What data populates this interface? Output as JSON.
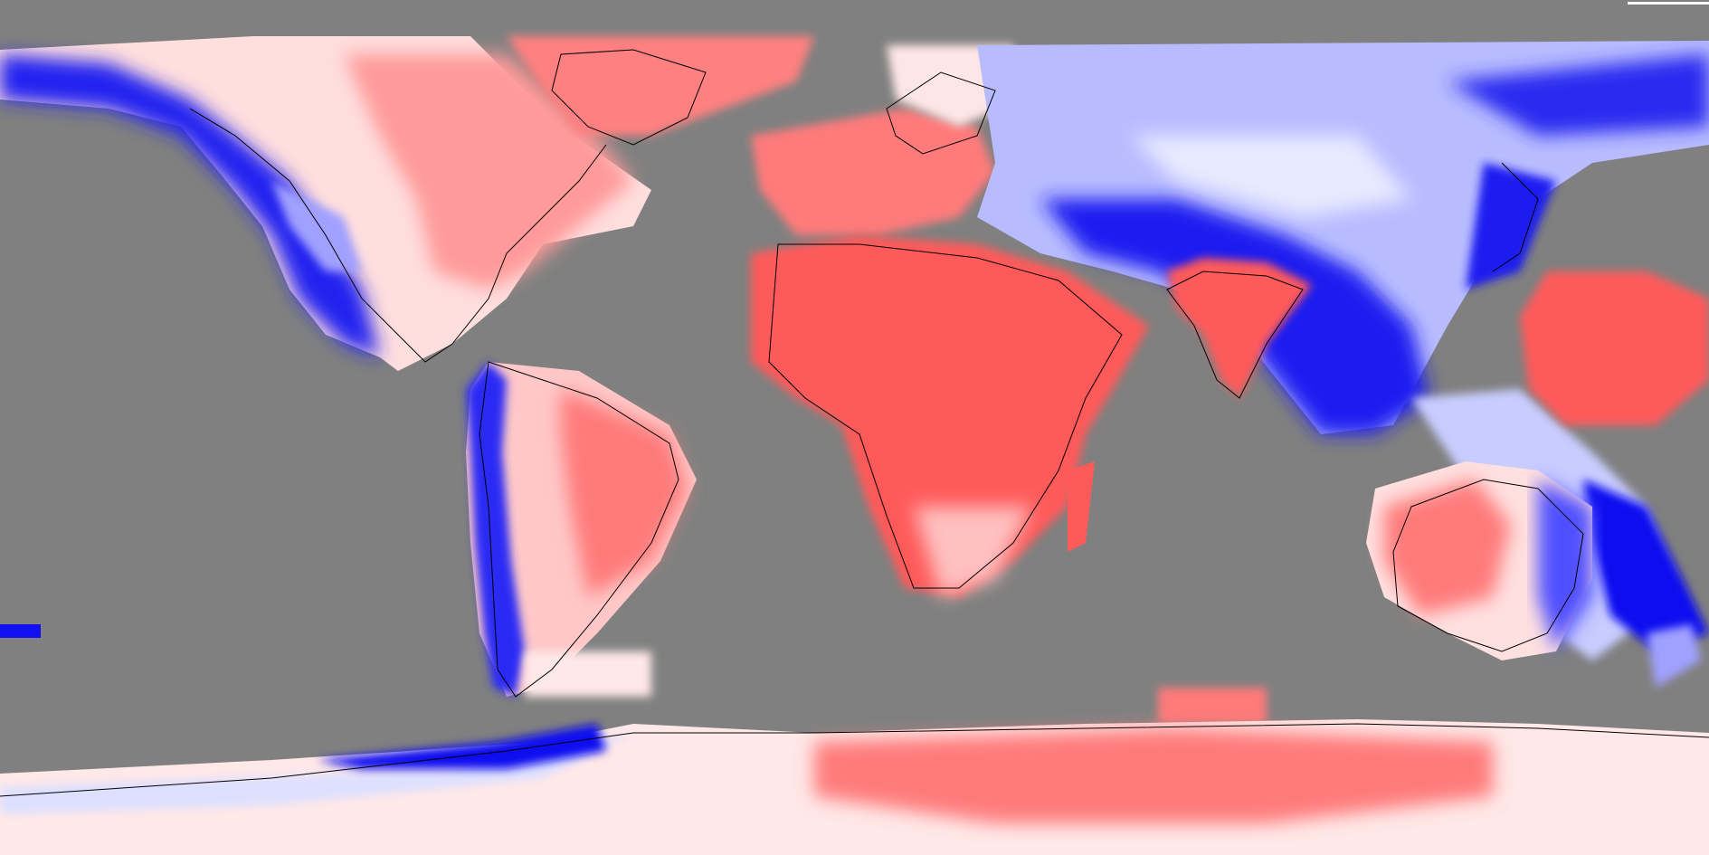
{
  "map": {
    "projection": "equirectangular",
    "colors": {
      "background": "#808080",
      "strong_negative": "#0000ff",
      "mid_negative": "#8080f0",
      "weak_negative": "#dde0ff",
      "neutral": "#ffffff",
      "weak_positive": "#ffd0d0",
      "strong_positive": "#ff5a5a",
      "coastline": "#000000"
    }
  }
}
